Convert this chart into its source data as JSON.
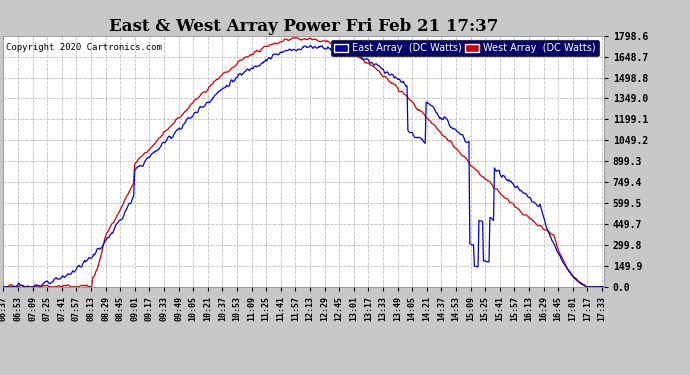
{
  "title": "East & West Array Power Fri Feb 21 17:37",
  "copyright": "Copyright 2020 Cartronics.com",
  "east_label": "East Array  (DC Watts)",
  "west_label": "West Array  (DC Watts)",
  "east_color": "#0000cc",
  "west_color": "#cc0000",
  "background_color": "#c8c8c8",
  "plot_bg_color": "#ffffff",
  "yticks": [
    0.0,
    149.9,
    299.8,
    449.7,
    599.5,
    749.4,
    899.3,
    1049.2,
    1199.1,
    1349.0,
    1498.8,
    1648.7,
    1798.6
  ],
  "ytick_labels": [
    "0.0",
    "149.9",
    "299.8",
    "449.7",
    "599.5",
    "749.4",
    "899.3",
    "1049.2",
    "1199.1",
    "1349.0",
    "1498.8",
    "1648.7",
    "1798.6"
  ],
  "ymax": 1798.6,
  "ymin": 0.0,
  "legend_east_bg": "#0000aa",
  "legend_west_bg": "#cc0000",
  "legend_frame_bg": "#000066"
}
